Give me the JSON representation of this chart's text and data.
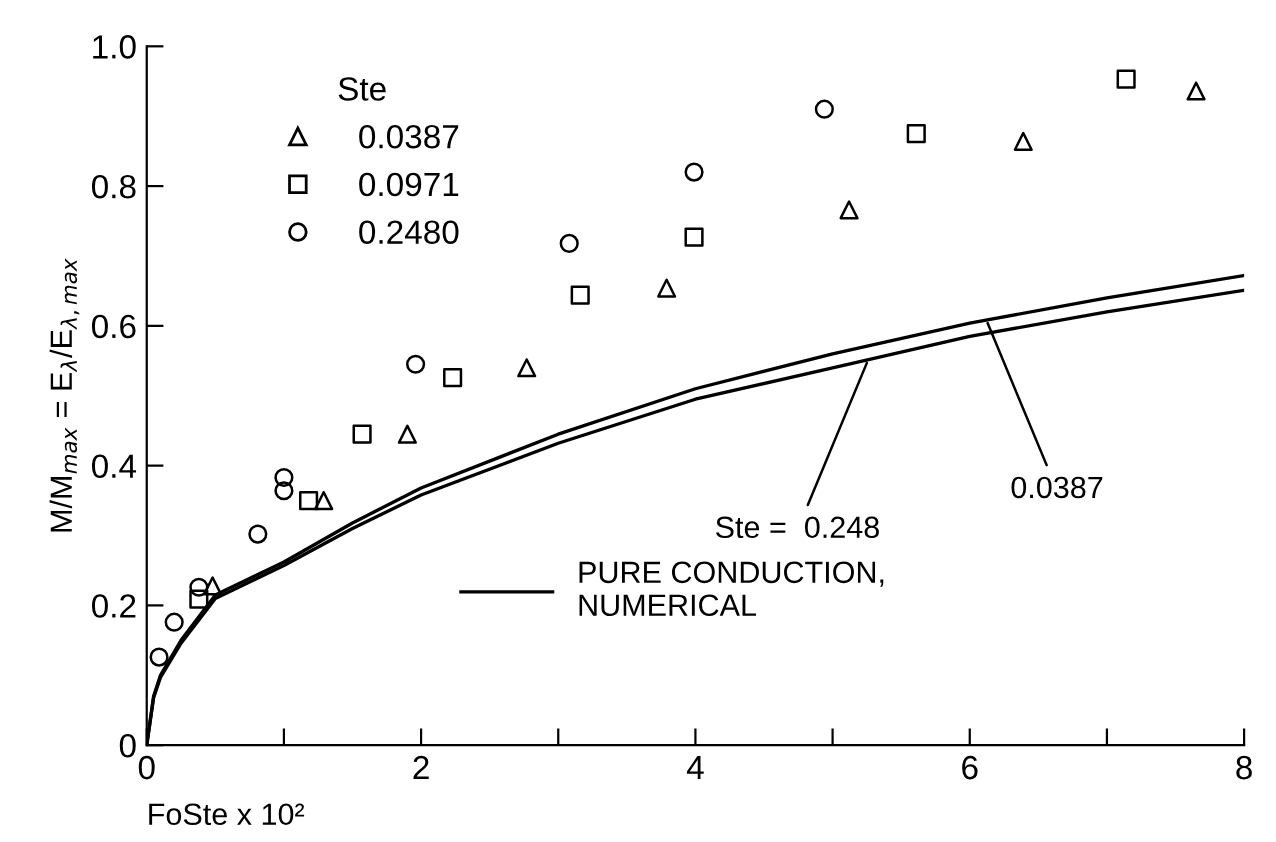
{
  "chart_data": {
    "type": "scatter",
    "xlabel": "FoSte x 10²",
    "ylabel": "M/M$_{max}$ = E$_{λ}$/E$_{λ,max}$",
    "legend_title": "Ste",
    "legend": "top left",
    "xlim": [
      0,
      8
    ],
    "ylim": [
      0,
      1.0
    ],
    "xticks": [
      0,
      {
        "value": 1,
        "label": null
      },
      2,
      {
        "value": 3,
        "label": null
      },
      4,
      {
        "value": 5,
        "label": null
      },
      6,
      {
        "value": 7,
        "label": null
      },
      8
    ],
    "yticks": [
      0,
      0.2,
      0.4,
      0.6,
      0.8,
      {
        "value": 1.0,
        "label": "1.0"
      }
    ],
    "grid": false,
    "series": [
      {
        "name": "0.0387",
        "marker": "triangle",
        "color": "#000000",
        "x": [
          0.48,
          1.29,
          1.9,
          2.77,
          3.79,
          5.12,
          6.39,
          7.65
        ],
        "values": [
          0.228,
          0.35,
          0.445,
          0.54,
          0.654,
          0.766,
          0.864,
          0.936
        ]
      },
      {
        "name": "0.0971",
        "marker": "square",
        "color": "#000000",
        "x": [
          0.38,
          1.18,
          1.57,
          2.23,
          3.16,
          3.99,
          5.61,
          7.14
        ],
        "values": [
          0.209,
          0.35,
          0.445,
          0.526,
          0.644,
          0.727,
          0.875,
          0.953
        ]
      },
      {
        "name": "0.2480",
        "marker": "circle",
        "color": "#000000",
        "x": [
          0.09,
          0.2,
          0.38,
          0.81,
          1.0,
          1.0,
          1.96,
          3.08,
          3.99,
          4.94
        ],
        "values": [
          0.126,
          0.176,
          0.226,
          0.302,
          0.383,
          0.364,
          0.545,
          0.718,
          0.82,
          0.91
        ]
      },
      {
        "name": "PURE CONDUCTION,\nNUMERICAL",
        "type": "line",
        "marker": "none",
        "line_style": "solid",
        "color": "#000000",
        "x": [
          0,
          0.05,
          0.1,
          0.25,
          0.5,
          1,
          1.5,
          2,
          3,
          4,
          5,
          6,
          7,
          8
        ],
        "values": [
          0,
          0.07,
          0.1,
          0.15,
          0.215,
          0.262,
          0.318,
          0.368,
          0.445,
          0.51,
          0.56,
          0.604,
          0.64,
          0.672
        ]
      },
      {
        "type": "line",
        "marker": "none",
        "line_style": "solid",
        "color": "#000000",
        "x": [
          0,
          0.05,
          0.1,
          0.25,
          0.5,
          1,
          1.5,
          2,
          3,
          4,
          5,
          6,
          7,
          8
        ],
        "values": [
          0,
          0.068,
          0.097,
          0.146,
          0.21,
          0.257,
          0.31,
          0.358,
          0.432,
          0.495,
          0.54,
          0.585,
          0.62,
          0.651
        ]
      }
    ],
    "annotations": [
      {
        "text": "Ste =  0.248",
        "x": 5.25,
        "y": 0.547
      },
      {
        "text": "0.0387",
        "x": 6.13,
        "y": 0.604
      }
    ]
  }
}
